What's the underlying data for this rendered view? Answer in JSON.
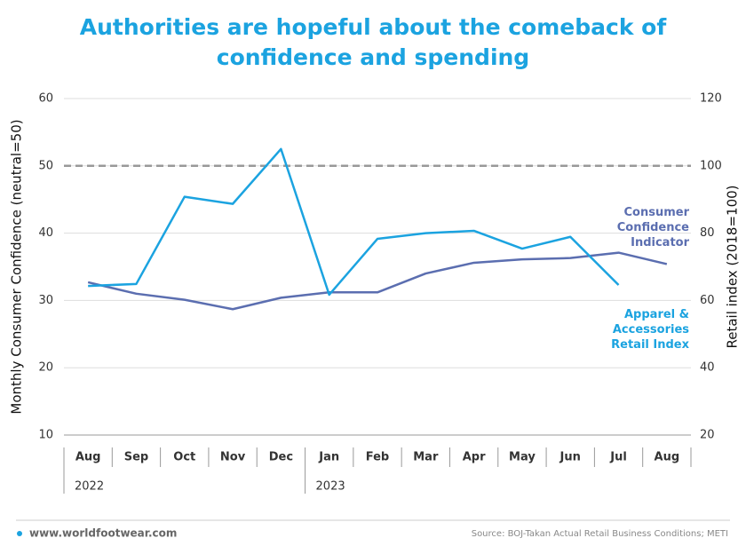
{
  "chart_data": {
    "type": "line",
    "title": "Authorities are hopeful about the comeback of confidence and spending",
    "y_label": "Monthly Consumer Confidence (neutral=50)",
    "y2_label": "Retail index (2018=100)",
    "categories": [
      "Aug",
      "Sep",
      "Oct",
      "Nov",
      "Dec",
      "Jan",
      "Feb",
      "Mar",
      "Apr",
      "May",
      "Jun",
      "Jul",
      "Aug"
    ],
    "x_groups": [
      {
        "label": "2022",
        "start": 0
      },
      {
        "label": "2023",
        "start": 5
      }
    ],
    "series": [
      {
        "name": "Consumer Confidence Indicator",
        "color": "#5b6eb0",
        "axis": "y",
        "values": [
          32.7,
          31.0,
          30.1,
          28.7,
          30.4,
          31.2,
          31.2,
          34.0,
          35.6,
          36.1,
          36.3,
          37.1,
          35.4
        ]
      },
      {
        "name": "Apparel & Accessories Retail Index",
        "color": "#1ba3e0",
        "axis": "y2",
        "values": [
          64.3,
          64.9,
          90.8,
          88.7,
          105.0,
          61.7,
          78.3,
          80.0,
          80.7,
          75.4,
          78.9,
          64.6,
          null
        ]
      }
    ],
    "ylim": [
      10,
      60
    ],
    "yticks": [
      10,
      20,
      30,
      40,
      50,
      60
    ],
    "y2lim": [
      20,
      120
    ],
    "y2ticks": [
      20,
      40,
      60,
      80,
      100,
      120
    ],
    "reference_line": 50,
    "grid": true,
    "source": "Source: BOJ-Takan Actual Retail Business Conditions; METI",
    "website": "www.worldfootwear.com"
  }
}
